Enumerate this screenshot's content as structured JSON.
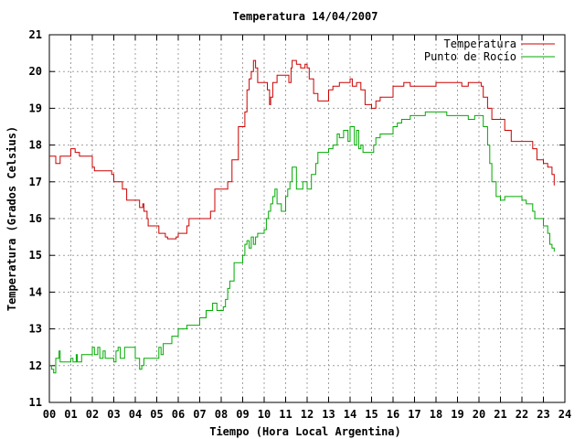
{
  "chart_data": {
    "type": "line",
    "title": "Temperatura 14/04/2007",
    "xlabel": "Tiempo (Hora Local Argentina)",
    "ylabel": "Temperatura (Grados Celsius)",
    "xlim": [
      0,
      24
    ],
    "ylim": [
      11,
      21
    ],
    "x_tick_labels": [
      "00",
      "01",
      "02",
      "03",
      "04",
      "05",
      "06",
      "07",
      "08",
      "09",
      "10",
      "11",
      "12",
      "13",
      "14",
      "15",
      "16",
      "17",
      "18",
      "19",
      "20",
      "21",
      "22",
      "23",
      "24"
    ],
    "y_tick_labels": [
      "11",
      "12",
      "13",
      "14",
      "15",
      "16",
      "17",
      "18",
      "19",
      "20",
      "21"
    ],
    "grid": true,
    "legend_position": "top-right",
    "colors": {
      "Temperatura": "#cc0000",
      "Punto de Rocío": "#00aa00"
    },
    "series": [
      {
        "name": "Temperatura",
        "x": [
          0,
          0.2,
          0.3,
          0.5,
          0.8,
          1.0,
          1.2,
          1.4,
          1.7,
          2.0,
          2.1,
          2.5,
          2.9,
          3.0,
          3.4,
          3.6,
          4.1,
          4.2,
          4.35,
          4.4,
          4.55,
          4.6,
          5.0,
          5.1,
          5.4,
          5.5,
          5.9,
          6.0,
          6.4,
          6.5,
          7.0,
          7.3,
          7.5,
          7.7,
          7.9,
          8.3,
          8.5,
          8.8,
          9.0,
          9.1,
          9.2,
          9.3,
          9.4,
          9.5,
          9.6,
          9.7,
          10.0,
          10.15,
          10.25,
          10.3,
          10.4,
          10.6,
          11.0,
          11.15,
          11.25,
          11.3,
          11.5,
          11.7,
          11.9,
          12.0,
          12.1,
          12.3,
          12.5,
          12.6,
          13.0,
          13.2,
          13.5,
          13.9,
          14.0,
          14.1,
          14.3,
          14.5,
          14.7,
          15.0,
          15.2,
          15.4,
          15.7,
          16.0,
          16.2,
          16.5,
          16.8,
          17.0,
          17.5,
          18.0,
          18.5,
          19.0,
          19.2,
          19.5,
          19.8,
          20.0,
          20.1,
          20.2,
          20.4,
          20.6,
          21.0,
          21.2,
          21.5,
          22.0,
          22.5,
          22.7,
          23.0,
          23.2,
          23.4,
          23.5
        ],
        "values": [
          17.7,
          17.7,
          17.5,
          17.7,
          17.7,
          17.9,
          17.8,
          17.7,
          17.7,
          17.4,
          17.3,
          17.3,
          17.2,
          17.0,
          16.8,
          16.5,
          16.5,
          16.3,
          16.4,
          16.2,
          16.0,
          15.8,
          15.8,
          15.6,
          15.5,
          15.45,
          15.5,
          15.6,
          15.8,
          16.0,
          16.0,
          16.0,
          16.2,
          16.8,
          16.8,
          17.0,
          17.6,
          18.5,
          18.5,
          18.9,
          19.5,
          19.8,
          20.0,
          20.3,
          20.1,
          19.7,
          19.7,
          19.5,
          19.1,
          19.3,
          19.7,
          19.9,
          19.9,
          19.7,
          20.1,
          20.3,
          20.2,
          20.1,
          20.2,
          20.1,
          19.8,
          19.4,
          19.2,
          19.2,
          19.5,
          19.6,
          19.7,
          19.7,
          19.8,
          19.6,
          19.7,
          19.5,
          19.1,
          19.0,
          19.2,
          19.3,
          19.3,
          19.6,
          19.6,
          19.7,
          19.6,
          19.6,
          19.6,
          19.7,
          19.7,
          19.7,
          19.6,
          19.7,
          19.7,
          19.7,
          19.6,
          19.3,
          19.0,
          18.7,
          18.7,
          18.4,
          18.1,
          18.1,
          17.9,
          17.6,
          17.5,
          17.4,
          17.2,
          16.9
        ],
        "interpolation": "step"
      },
      {
        "name": "Punto de Rocío",
        "x": [
          0,
          0.1,
          0.2,
          0.3,
          0.45,
          0.5,
          0.6,
          0.8,
          1.0,
          1.1,
          1.25,
          1.3,
          1.5,
          1.9,
          2.0,
          2.1,
          2.25,
          2.35,
          2.5,
          2.6,
          2.9,
          3.0,
          3.1,
          3.2,
          3.3,
          3.5,
          3.8,
          4.0,
          4.2,
          4.3,
          4.4,
          4.5,
          4.6,
          4.8,
          5.0,
          5.1,
          5.2,
          5.3,
          5.5,
          5.7,
          5.9,
          6.0,
          6.2,
          6.4,
          6.5,
          6.7,
          7.0,
          7.1,
          7.3,
          7.5,
          7.6,
          7.8,
          8.0,
          8.1,
          8.2,
          8.3,
          8.4,
          8.6,
          8.8,
          9.0,
          9.1,
          9.2,
          9.3,
          9.4,
          9.5,
          9.6,
          9.7,
          10.0,
          10.1,
          10.2,
          10.3,
          10.4,
          10.5,
          10.6,
          10.8,
          11.0,
          11.1,
          11.2,
          11.3,
          11.5,
          11.8,
          12.0,
          12.2,
          12.4,
          12.5,
          12.8,
          13.0,
          13.2,
          13.4,
          13.5,
          13.7,
          13.9,
          14.0,
          14.2,
          14.3,
          14.4,
          14.5,
          14.6,
          14.8,
          15.0,
          15.1,
          15.2,
          15.4,
          15.6,
          16.0,
          16.2,
          16.4,
          16.6,
          16.8,
          17.0,
          17.5,
          18.0,
          18.5,
          19.0,
          19.2,
          19.5,
          19.8,
          20.0,
          20.2,
          20.4,
          20.5,
          20.6,
          20.8,
          21.0,
          21.2,
          21.5,
          22.0,
          22.2,
          22.5,
          22.6,
          23.0,
          23.2,
          23.3,
          23.4,
          23.5
        ],
        "values": [
          12.0,
          11.9,
          11.8,
          12.2,
          12.4,
          12.1,
          12.1,
          12.1,
          12.2,
          12.1,
          12.3,
          12.1,
          12.3,
          12.3,
          12.5,
          12.3,
          12.5,
          12.2,
          12.4,
          12.2,
          12.2,
          12.1,
          12.4,
          12.5,
          12.2,
          12.5,
          12.5,
          12.2,
          11.9,
          12.0,
          12.2,
          12.2,
          12.2,
          12.2,
          12.2,
          12.5,
          12.3,
          12.6,
          12.6,
          12.8,
          12.8,
          13.0,
          13.0,
          13.1,
          13.1,
          13.1,
          13.3,
          13.3,
          13.5,
          13.5,
          13.7,
          13.5,
          13.5,
          13.6,
          13.8,
          14.1,
          14.3,
          14.8,
          14.8,
          15.0,
          15.3,
          15.4,
          15.2,
          15.5,
          15.3,
          15.5,
          15.6,
          15.7,
          16.0,
          16.2,
          16.4,
          16.6,
          16.8,
          16.4,
          16.2,
          16.6,
          16.8,
          17.0,
          17.4,
          16.8,
          17.0,
          16.8,
          17.2,
          17.5,
          17.8,
          17.8,
          17.9,
          18.0,
          18.3,
          18.2,
          18.4,
          18.1,
          18.5,
          18.0,
          18.4,
          17.9,
          18.0,
          17.8,
          17.8,
          17.8,
          18.0,
          18.2,
          18.3,
          18.3,
          18.5,
          18.6,
          18.7,
          18.7,
          18.8,
          18.8,
          18.9,
          18.9,
          18.8,
          18.8,
          18.8,
          18.7,
          18.8,
          18.8,
          18.5,
          18.0,
          17.5,
          17.0,
          16.6,
          16.5,
          16.6,
          16.6,
          16.5,
          16.4,
          16.2,
          16.0,
          15.8,
          15.6,
          15.3,
          15.2,
          15.1
        ],
        "interpolation": "step"
      }
    ]
  }
}
